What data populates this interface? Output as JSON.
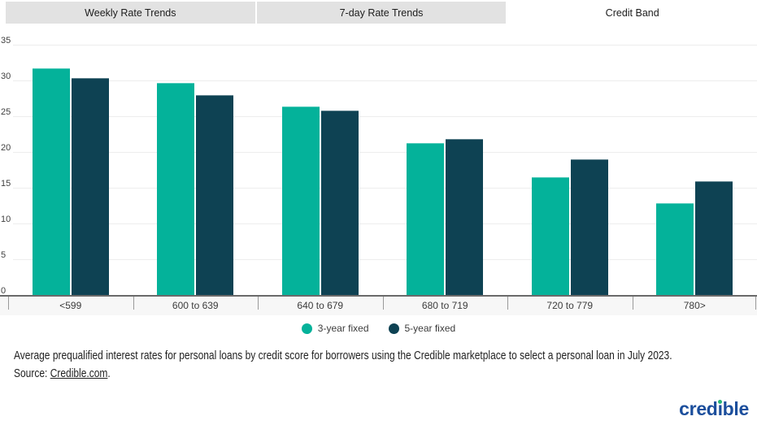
{
  "tab_bar": {
    "tabs": [
      {
        "label": "Weekly Rate Trends",
        "active": false
      },
      {
        "label": "7-day Rate Trends",
        "active": false
      },
      {
        "label": "Credit Band",
        "active": true
      }
    ]
  },
  "chart_data": {
    "type": "bar",
    "title": "",
    "xlabel": "",
    "ylabel": "",
    "categories": [
      "<599",
      "600 to 639",
      "640 to 679",
      "680 to 719",
      "720 to 779",
      "780>"
    ],
    "series": [
      {
        "name": "3-year fixed",
        "color": "#04b29a",
        "values": [
          31.6,
          29.6,
          26.3,
          21.2,
          16.4,
          12.8
        ]
      },
      {
        "name": "5-year fixed",
        "color": "#0e4253",
        "values": [
          30.3,
          27.9,
          25.8,
          21.8,
          18.9,
          15.9
        ]
      }
    ],
    "ylim": [
      0,
      35
    ],
    "yticks": [
      0,
      5,
      10,
      15,
      20,
      25,
      30,
      35
    ],
    "grid": "horizontal",
    "legend_position": "bottom"
  },
  "caption": {
    "line1": "Average prequalified interest rates for personal loans by credit score for borrowers using the Credible marketplace to select a personal loan in July 2023.",
    "source_prefix": "Source: ",
    "source_link": "Credible.com",
    "source_suffix": "."
  },
  "logo": {
    "text_pre": "cred",
    "i_char": "ı",
    "text_post": "ble",
    "color": "#1b4e9c",
    "dot_color": "#25b575"
  }
}
